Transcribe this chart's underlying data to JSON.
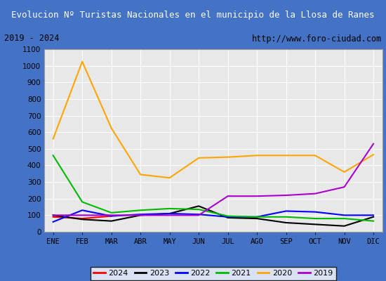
{
  "title": "Evolucion Nº Turistas Nacionales en el municipio de la Llosa de Ranes",
  "subtitle_left": "2019 - 2024",
  "subtitle_right": "http://www.foro-ciudad.com",
  "months": [
    "ENE",
    "FEB",
    "MAR",
    "ABR",
    "MAY",
    "JUN",
    "JUL",
    "AGO",
    "SEP",
    "OCT",
    "NOV",
    "DIC"
  ],
  "series": {
    "2024": {
      "color": "#ff0000",
      "data": [
        90,
        80,
        95,
        null,
        null,
        null,
        null,
        null,
        null,
        null,
        null,
        null
      ]
    },
    "2023": {
      "color": "#000000",
      "data": [
        100,
        75,
        65,
        100,
        110,
        155,
        85,
        80,
        55,
        45,
        35,
        90
      ]
    },
    "2022": {
      "color": "#0000ff",
      "data": [
        60,
        130,
        95,
        105,
        110,
        105,
        90,
        90,
        125,
        120,
        100,
        100
      ]
    },
    "2021": {
      "color": "#00bb00",
      "data": [
        460,
        180,
        115,
        130,
        140,
        135,
        95,
        90,
        90,
        80,
        80,
        65
      ]
    },
    "2020": {
      "color": "#ffa500",
      "data": [
        560,
        1025,
        625,
        345,
        325,
        445,
        450,
        460,
        460,
        460,
        360,
        465
      ]
    },
    "2019": {
      "color": "#aa00cc",
      "data": [
        100,
        100,
        100,
        100,
        100,
        100,
        215,
        215,
        220,
        230,
        270,
        530
      ]
    }
  },
  "ylim": [
    0,
    1100
  ],
  "yticks": [
    0,
    100,
    200,
    300,
    400,
    500,
    600,
    700,
    800,
    900,
    1000,
    1100
  ],
  "title_bg_color": "#4472c4",
  "title_font_color": "#ffffff",
  "plot_bg_color": "#e8e8e8",
  "grid_color": "#ffffff",
  "border_color": "#4472c4",
  "legend_order": [
    "2024",
    "2023",
    "2022",
    "2021",
    "2020",
    "2019"
  ]
}
